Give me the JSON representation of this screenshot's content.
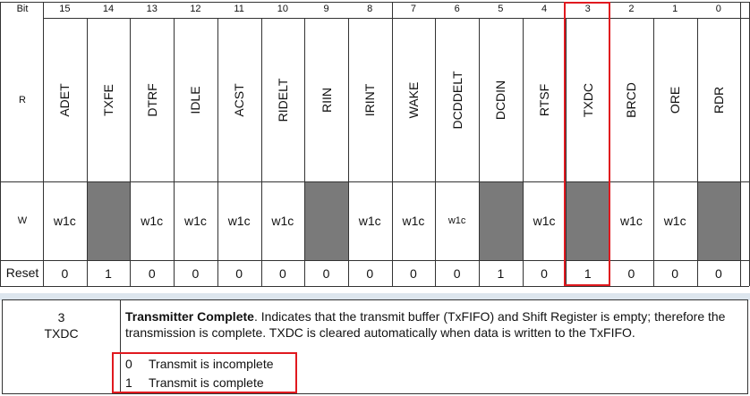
{
  "row_labels": {
    "bit": "Bit",
    "read": "R",
    "write": "W",
    "reset": "Reset"
  },
  "bits": [
    {
      "num": "15",
      "name": "ADET",
      "w": "w1c",
      "reset": "0"
    },
    {
      "num": "14",
      "name": "TXFE",
      "w": "",
      "reset": "1"
    },
    {
      "num": "13",
      "name": "DTRF",
      "w": "w1c",
      "reset": "0"
    },
    {
      "num": "12",
      "name": "IDLE",
      "w": "w1c",
      "reset": "0"
    },
    {
      "num": "11",
      "name": "ACST",
      "w": "w1c",
      "reset": "0"
    },
    {
      "num": "10",
      "name": "RIDELT",
      "w": "w1c",
      "reset": "0"
    },
    {
      "num": "9",
      "name": "RIIN",
      "w": "",
      "reset": "0"
    },
    {
      "num": "8",
      "name": "IRINT",
      "w": "w1c",
      "reset": "0"
    },
    {
      "num": "7",
      "name": "WAKE",
      "w": "w1c",
      "reset": "0"
    },
    {
      "num": "6",
      "name": "DCDDELT",
      "w": "w1c",
      "reset": "0"
    },
    {
      "num": "5",
      "name": "DCDIN",
      "w": "",
      "reset": "1"
    },
    {
      "num": "4",
      "name": "RTSF",
      "w": "w1c",
      "reset": "0"
    },
    {
      "num": "3",
      "name": "TXDC",
      "w": "",
      "reset": "1"
    },
    {
      "num": "2",
      "name": "BRCD",
      "w": "w1c",
      "reset": "0"
    },
    {
      "num": "1",
      "name": "ORE",
      "w": "w1c",
      "reset": "0"
    },
    {
      "num": "0",
      "name": "RDR",
      "w": "",
      "reset": "0"
    }
  ],
  "highlight_bit": "3",
  "colors": {
    "highlight": "#e0191f",
    "reserved_fill": "#7a7a7a"
  },
  "description": {
    "field_bit": "3",
    "field_name": "TXDC",
    "title": "Transmitter Complete",
    "text": ". Indicates that the transmit buffer (TxFIFO) and Shift Register is empty; therefore the transmission is complete. TXDC is cleared automatically when data is written to the TxFIFO.",
    "options": [
      {
        "value": "0",
        "meaning": "Transmit is incomplete"
      },
      {
        "value": "1",
        "meaning": "Transmit is complete"
      }
    ]
  }
}
